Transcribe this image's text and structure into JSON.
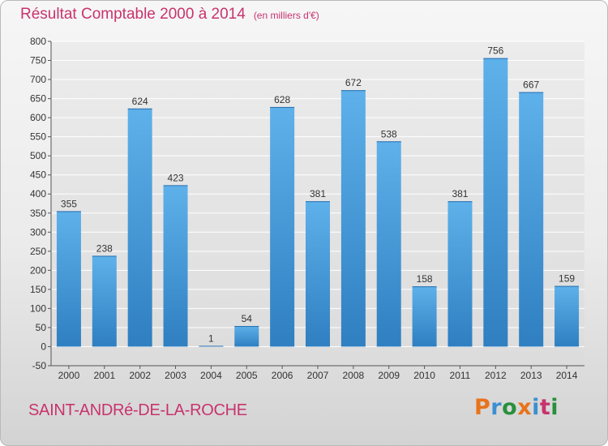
{
  "title": "Résultat Comptable 2000 à 2014",
  "unit_note": "(en milliers d'€)",
  "place_name": "SAINT-ANDRé-DE-LA-ROCHE",
  "logo": {
    "letters": [
      "P",
      "r",
      "o",
      "x",
      "i",
      "t",
      "i"
    ],
    "colors": [
      "#e8731c",
      "#3c8fd0",
      "#2a8f3c",
      "#e8731c",
      "#3c8fd0",
      "#c8336e",
      "#2a8f3c"
    ]
  },
  "colors": {
    "bar_top": "#5eb1ea",
    "bar_bottom": "#2f7fc1",
    "title": "#c8336e"
  },
  "chart_data": {
    "type": "bar",
    "title": "Résultat Comptable 2000 à 2014",
    "subtitle": "(en milliers d'€)",
    "xlabel": "",
    "ylabel": "",
    "categories": [
      "2000",
      "2001",
      "2002",
      "2003",
      "2004",
      "2005",
      "2006",
      "2007",
      "2008",
      "2009",
      "2010",
      "2011",
      "2012",
      "2013",
      "2014"
    ],
    "values": [
      355,
      238,
      624,
      423,
      1,
      54,
      628,
      381,
      672,
      538,
      158,
      381,
      756,
      667,
      159
    ],
    "ylim": [
      -50,
      800
    ],
    "yticks": [
      -50,
      0,
      50,
      100,
      150,
      200,
      250,
      300,
      350,
      400,
      450,
      500,
      550,
      600,
      650,
      700,
      750,
      800
    ],
    "grid": true,
    "data_labels": true
  }
}
